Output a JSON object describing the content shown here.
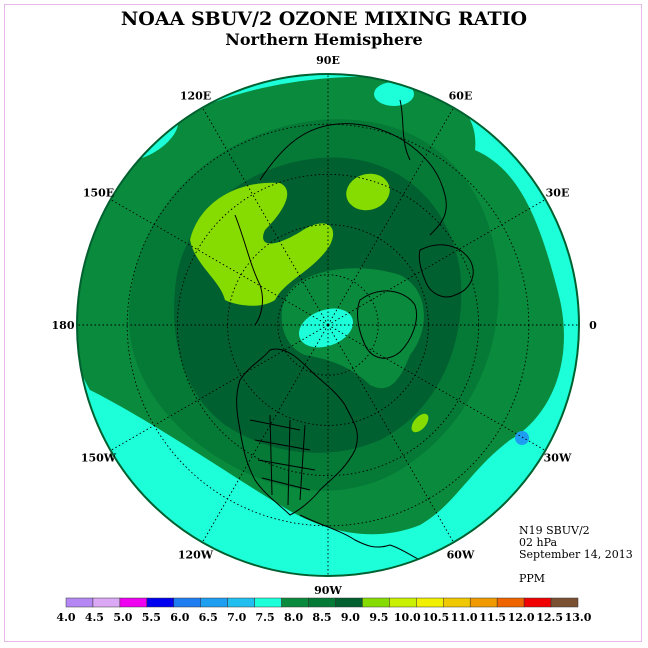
{
  "title": "NOAA SBUV/2 OZONE MIXING RATIO",
  "subtitle": "Northern Hemisphere",
  "info": {
    "instrument": "N19 SBUV/2",
    "level": "02 hPa",
    "date": "September 14, 2013",
    "units": "PPM"
  },
  "longitude_labels": [
    {
      "text": "90E",
      "lon": 90
    },
    {
      "text": "60E",
      "lon": 60
    },
    {
      "text": "30E",
      "lon": 30
    },
    {
      "text": "0",
      "lon": 0
    },
    {
      "text": "30W",
      "lon": -30
    },
    {
      "text": "60W",
      "lon": -60
    },
    {
      "text": "90W",
      "lon": -90
    },
    {
      "text": "120W",
      "lon": -120
    },
    {
      "text": "150W",
      "lon": -150
    },
    {
      "text": "180",
      "lon": 180
    },
    {
      "text": "150E",
      "lon": 150
    },
    {
      "text": "120E",
      "lon": 120
    }
  ],
  "colorbar": {
    "ticks": [
      "4.0",
      "4.5",
      "5.0",
      "5.5",
      "6.0",
      "6.5",
      "7.0",
      "7.5",
      "8.0",
      "8.5",
      "9.0",
      "9.5",
      "10.0",
      "10.5",
      "11.0",
      "11.5",
      "12.0",
      "12.5",
      "13.0"
    ],
    "colors": [
      "#b487f5",
      "#dba8f5",
      "#f000f0",
      "#0000f0",
      "#1e7df0",
      "#1e9ef0",
      "#20bff0",
      "#1cffd8",
      "#0a8a3c",
      "#057a36",
      "#006030",
      "#86dc00",
      "#c8f000",
      "#f0f000",
      "#f0c800",
      "#f09a00",
      "#f06400",
      "#f00000",
      "#7a5032"
    ]
  },
  "colors": {
    "frame": "#e8b8e8",
    "level_7_5_8_0": "#1cffd8",
    "level_8_0_8_5": "#0a8a3c",
    "level_8_5_9_0": "#057a36",
    "level_9_0_9_5": "#006030",
    "level_9_5_10_0": "#86dc00"
  }
}
